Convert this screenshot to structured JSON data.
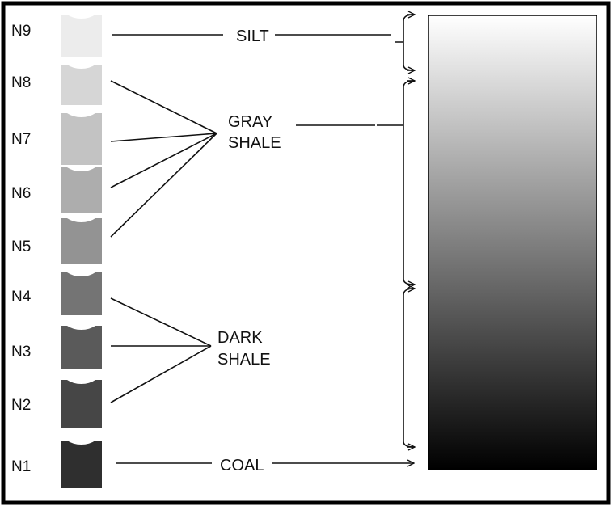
{
  "grades": [
    {
      "label": "N9",
      "color": "#ececec"
    },
    {
      "label": "N8",
      "color": "#d6d6d6"
    },
    {
      "label": "N7",
      "color": "#c3c3c3"
    },
    {
      "label": "N6",
      "color": "#adadad"
    },
    {
      "label": "N5",
      "color": "#939393"
    },
    {
      "label": "N4",
      "color": "#747474"
    },
    {
      "label": "N3",
      "color": "#5a5a5a"
    },
    {
      "label": "N2",
      "color": "#464646"
    },
    {
      "label": "N1",
      "color": "#2f2f2f"
    }
  ],
  "labels": {
    "silt": "SILT",
    "gray_shale_line1": "GRAY",
    "gray_shale_line2": "SHALE",
    "dark_shale_line1": "DARK",
    "dark_shale_line2": "SHALE",
    "coal": "COAL"
  },
  "gradient": {
    "top_color": "#ffffff",
    "bottom_color": "#000000"
  },
  "colors": {
    "border": "#000000",
    "line": "#111111"
  }
}
